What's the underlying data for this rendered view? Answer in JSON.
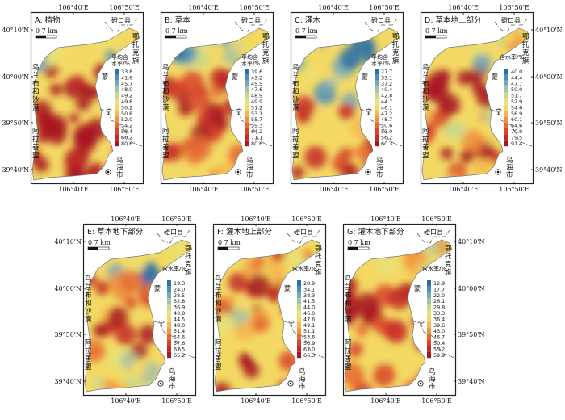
{
  "panels": [
    {
      "id": "A",
      "title": "A: 植物",
      "top_ticks": [
        "106°40'E",
        "106°50'E"
      ],
      "bottom_ticks": [
        "106°40'E",
        "106°50'E"
      ],
      "left_ticks": [
        "40°10'N",
        "40°00'N",
        "39°50'N",
        "39°40'N"
      ],
      "right_ticks": [],
      "scale_label": "0    7 km",
      "legend_title": [
        "平均含",
        "水率/%"
      ],
      "legend_values": [
        "33.8",
        "41.6",
        "45.7",
        "48.0",
        "49.2",
        "49.8",
        "50.2",
        "50.8",
        "52.0",
        "54.2",
        "58.4",
        "66.2",
        "80.6"
      ],
      "place_labels": {
        "dengkou": "磴口县",
        "ewapu": [
          "鄂",
          "托",
          "克",
          "旗"
        ],
        "ulan": [
          "乌",
          "兰",
          "布",
          "和",
          "沙",
          "漠"
        ],
        "alxa": [
          "阿",
          "拉",
          "善",
          "盟"
        ],
        "wuhai": [
          "乌",
          "海",
          "市"
        ],
        "meng": "蒙",
        "ning": "宁"
      }
    },
    {
      "id": "B",
      "title": "B: 草本",
      "top_ticks": [
        "106°40'E",
        "106°50'E"
      ],
      "bottom_ticks": [
        "106°40'E",
        "106°50'E"
      ],
      "left_ticks": [],
      "right_ticks": [],
      "scale_label": "0    7 km",
      "legend_title": [
        "平均含",
        "水率/%"
      ],
      "legend_values": [
        "39.6",
        "43.2",
        "45.5",
        "47.6",
        "48.9",
        "49.9",
        "51.2",
        "53.1",
        "55.7",
        "59.3",
        "64.2",
        "71.1",
        "80.6"
      ],
      "place_labels": {
        "dengkou": "磴口县",
        "ewapu": [
          "鄂",
          "托",
          "克",
          "旗"
        ],
        "ulan": [
          "乌",
          "兰",
          "布",
          "和",
          "沙",
          "漠"
        ],
        "alxa": [
          "阿",
          "拉",
          "善",
          "盟"
        ],
        "wuhai": [
          "乌",
          "海",
          "市"
        ],
        "meng": "蒙",
        "ning": "宁"
      }
    },
    {
      "id": "C",
      "title": "C: 灌木",
      "top_ticks": [
        "106°40'E",
        "106°50'E"
      ],
      "bottom_ticks": [
        "106°40'E",
        "106°50'E"
      ],
      "left_ticks": [],
      "right_ticks": [],
      "scale_label": "0    7 km",
      "legend_title": [
        "平均含",
        "水率/%"
      ],
      "legend_values": [
        "27.7",
        "33.1",
        "37.2",
        "40.4",
        "42.8",
        "44.7",
        "46.1",
        "47.2",
        "48.7",
        "50.6",
        "53.0",
        "56.2",
        "60.3"
      ],
      "place_labels": {
        "dengkou": "磴口县",
        "ewapu": [
          "鄂",
          "托",
          "克",
          "旗"
        ],
        "ulan": [
          "乌",
          "兰",
          "布",
          "和",
          "沙",
          "漠"
        ],
        "alxa": [
          "阿",
          "拉",
          "善",
          "盟"
        ],
        "wuhai": [
          "乌",
          "海",
          "市"
        ],
        "meng": "蒙",
        "ning": "宁"
      }
    },
    {
      "id": "D",
      "title": "D: 草本地上部分",
      "top_ticks": [
        "106°40'E",
        "106°50'E"
      ],
      "bottom_ticks": [
        "106°40'E",
        "106°50'E"
      ],
      "left_ticks": [],
      "right_ticks": [
        "40°10'N",
        "40°00'N",
        "39°50'N",
        "39°40'N"
      ],
      "scale_label": "0    7 km",
      "legend_title": [
        "含水率/%"
      ],
      "legend_values": [
        "40.0",
        "44.4",
        "47.7",
        "50.0",
        "51.7",
        "52.9",
        "54.6",
        "56.9",
        "60.1",
        "64.6",
        "70.9",
        "79.5",
        "91.4"
      ],
      "place_labels": {
        "dengkou": "磴口县",
        "ewapu": [
          "鄂",
          "托",
          "克",
          "旗"
        ],
        "ulan": [
          "乌",
          "兰",
          "布",
          "和",
          "沙",
          "漠"
        ],
        "alxa": [
          "阿",
          "拉",
          "善",
          "盟"
        ],
        "wuhai": [
          "乌",
          "海",
          "市"
        ],
        "meng": "蒙",
        "ning": "宁"
      }
    },
    {
      "id": "E",
      "title": "E: 草本地下部分",
      "top_ticks": [
        "106°40'E",
        "106°50'E"
      ],
      "bottom_ticks": [
        "106°40'E",
        "106°50'E"
      ],
      "left_ticks": [
        "40°10'N",
        "40°00'N",
        "39°50'N",
        "39°40'N"
      ],
      "right_ticks": [],
      "scale_label": "0    7 km",
      "legend_title": [
        "含水率/%"
      ],
      "legend_values": [
        "19.3",
        "24.0",
        "28.5",
        "32.8",
        "36.9",
        "40.8",
        "44.5",
        "48.0",
        "51.4",
        "54.6",
        "57.6",
        "61.5",
        "65.2"
      ],
      "place_labels": {
        "dengkou": "磴口县",
        "ewapu": [
          "鄂",
          "托",
          "克",
          "旗"
        ],
        "ulan": [
          "乌",
          "兰",
          "布",
          "和",
          "沙",
          "漠"
        ],
        "alxa": [
          "阿",
          "拉",
          "善",
          "盟"
        ],
        "wuhai": [
          "乌",
          "海",
          "市"
        ],
        "meng": "蒙",
        "ning": "宁"
      }
    },
    {
      "id": "F",
      "title": "F: 灌木地上部分",
      "top_ticks": [
        "106°40'E",
        "106°50'E"
      ],
      "bottom_ticks": [
        "106°40'E",
        "106°50'E"
      ],
      "left_ticks": [],
      "right_ticks": [],
      "scale_label": "0    7 km",
      "legend_title": [
        "含水率/%"
      ],
      "legend_values": [
        "28.9",
        "34.1",
        "38.3",
        "41.5",
        "44.0",
        "46.0",
        "47.6",
        "49.1",
        "51.1",
        "53.6",
        "56.9",
        "61.0",
        "66.3"
      ],
      "place_labels": {
        "dengkou": "磴口县",
        "ewapu": [
          "鄂",
          "托",
          "克",
          "旗"
        ],
        "ulan": [
          "乌",
          "兰",
          "布",
          "和",
          "沙",
          "漠"
        ],
        "alxa": [
          "阿",
          "拉",
          "善",
          "盟"
        ],
        "wuhai": [
          "乌",
          "海",
          "市"
        ],
        "meng": "蒙",
        "ning": "宁"
      }
    },
    {
      "id": "G",
      "title": "G: 灌木地下部分",
      "top_ticks": [
        "106°40'E",
        "106°50'E"
      ],
      "bottom_ticks": [
        "106°40'E",
        "106°50'E"
      ],
      "left_ticks": [],
      "right_ticks": [
        "40°10'N",
        "40°00'N",
        "39°50'N",
        "39°40'N"
      ],
      "scale_label": "0    7 km",
      "legend_title": [
        "含水率/%"
      ],
      "legend_values": [
        "12.9",
        "17.7",
        "22.0",
        "26.1",
        "29.8",
        "33.3",
        "36.4",
        "39.6",
        "43.0",
        "46.7",
        "50.4",
        "55.2",
        "59.9"
      ],
      "place_labels": {
        "dengkou": "磴口县",
        "ewapu": [
          "鄂",
          "托",
          "克",
          "旗"
        ],
        "ulan": [
          "乌",
          "兰",
          "布",
          "和",
          "沙",
          "漠"
        ],
        "alxa": [
          "阿",
          "拉",
          "善",
          "盟"
        ],
        "wuhai": [
          "乌",
          "海",
          "市"
        ],
        "meng": "蒙",
        "ning": "宁"
      }
    }
  ],
  "colors": {
    "ramp": [
      "#2c6fa8",
      "#4d8fb8",
      "#78a9b8",
      "#a6c2a4",
      "#c9d98c",
      "#e6e37a",
      "#f3d964",
      "#f6b84e",
      "#f0923e",
      "#e56a33",
      "#d8452b",
      "#c42a26",
      "#a81822"
    ],
    "frame": "#222222",
    "boundary": "#555555"
  }
}
